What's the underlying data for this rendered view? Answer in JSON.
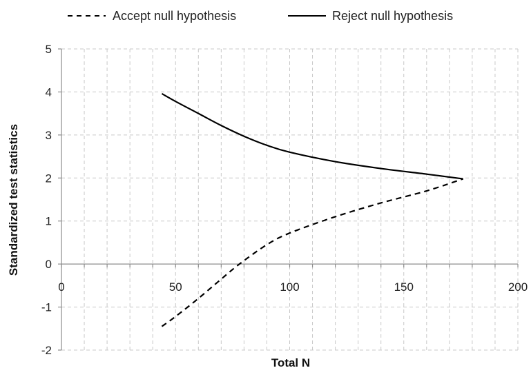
{
  "chart_data": {
    "type": "line",
    "xlabel": "Total N",
    "ylabel": "Standardized test statistics",
    "xlim": [
      0,
      200
    ],
    "ylim": [
      -2,
      5
    ],
    "x_ticks": [
      0,
      50,
      100,
      150,
      200
    ],
    "y_ticks": [
      -2,
      -1,
      0,
      1,
      2,
      3,
      4,
      5
    ],
    "x_minor_grid_step": 10,
    "grid": true,
    "legend_position": "top",
    "series": [
      {
        "name": "Accept null hypothesis",
        "style": "dashed",
        "color": "#000000",
        "x": [
          44,
          50,
          60,
          70,
          78,
          90,
          100,
          120,
          140,
          160,
          176
        ],
        "y": [
          -1.45,
          -1.22,
          -0.8,
          -0.35,
          0.0,
          0.45,
          0.72,
          1.1,
          1.42,
          1.7,
          1.98
        ]
      },
      {
        "name": "Reject null hypothesis",
        "style": "solid",
        "color": "#000000",
        "x": [
          44,
          50,
          60,
          70,
          80,
          90,
          100,
          120,
          140,
          160,
          176
        ],
        "y": [
          3.96,
          3.78,
          3.5,
          3.22,
          2.97,
          2.76,
          2.6,
          2.38,
          2.22,
          2.09,
          1.98
        ]
      }
    ]
  }
}
